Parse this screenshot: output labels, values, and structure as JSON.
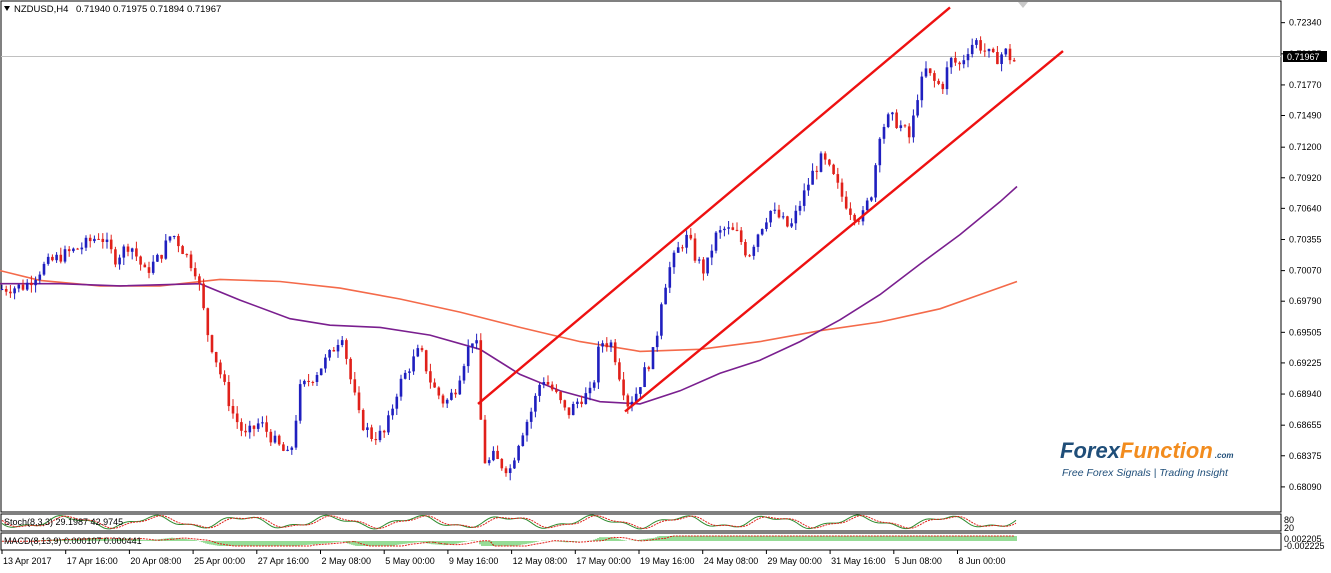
{
  "header": {
    "symbol": "NZDUSD,H4",
    "ohlc": "0.71940 0.71975 0.71894 0.71967"
  },
  "current_price": "0.71967",
  "stoch_label": "Stoch(8,3,3) 29.1987 42.9745",
  "stoch_levels": [
    "80",
    "20"
  ],
  "macd_label": "MACD(8,13,9) 0.000107 0.000441",
  "macd_levels": [
    "0.002205",
    "-0.002225"
  ],
  "watermark": {
    "brand_part1": "Forex",
    "brand_part2": "Function",
    "domain": ".com",
    "tagline": "Free Forex Signals | Trading Insight"
  },
  "colors": {
    "bull": "#1f1fbf",
    "bear": "#e0201a",
    "ma_fast": "#7a1f8f",
    "ma_slow": "#f46a4a",
    "channel": "#ee1111",
    "stoch_main": "#2e8b2e",
    "stoch_signal": "#e0201a",
    "macd_hist": "#2eb82e",
    "macd_signal": "#e0201a"
  },
  "chart_data": {
    "type": "candlestick",
    "instrument": "NZDUSD",
    "timeframe": "H4",
    "price_axis_labels": [
      "0.72340",
      "0.72055",
      "0.71770",
      "0.71490",
      "0.71200",
      "0.70920",
      "0.70640",
      "0.70355",
      "0.70070",
      "0.69790",
      "0.69505",
      "0.69225",
      "0.68940",
      "0.68655",
      "0.68375",
      "0.68090"
    ],
    "ylim": [
      0.6797,
      0.7252
    ],
    "time_axis_labels": [
      "13 Apr 2017",
      "17 Apr 16:00",
      "20 Apr 08:00",
      "25 Apr 00:00",
      "27 Apr 16:00",
      "2 May 08:00",
      "5 May 00:00",
      "9 May 16:00",
      "12 May 08:00",
      "17 May 00:00",
      "19 May 16:00",
      "24 May 08:00",
      "29 May 00:00",
      "31 May 16:00",
      "5 Jun 08:00",
      "8 Jun 00:00"
    ],
    "price_path": [
      [
        0,
        0.699
      ],
      [
        25,
        0.6993
      ],
      [
        45,
        0.7012
      ],
      [
        60,
        0.702
      ],
      [
        80,
        0.7028
      ],
      [
        100,
        0.704
      ],
      [
        115,
        0.7018
      ],
      [
        130,
        0.7032
      ],
      [
        145,
        0.7005
      ],
      [
        160,
        0.702
      ],
      [
        172,
        0.7042
      ],
      [
        185,
        0.7023
      ],
      [
        197,
        0.7005
      ],
      [
        207,
        0.6952
      ],
      [
        218,
        0.692
      ],
      [
        232,
        0.6878
      ],
      [
        245,
        0.6855
      ],
      [
        260,
        0.6868
      ],
      [
        275,
        0.685
      ],
      [
        290,
        0.6835
      ],
      [
        300,
        0.6898
      ],
      [
        315,
        0.6912
      ],
      [
        330,
        0.693
      ],
      [
        342,
        0.695
      ],
      [
        350,
        0.691
      ],
      [
        360,
        0.687
      ],
      [
        372,
        0.6855
      ],
      [
        385,
        0.6858
      ],
      [
        398,
        0.69
      ],
      [
        410,
        0.692
      ],
      [
        420,
        0.6935
      ],
      [
        432,
        0.6902
      ],
      [
        445,
        0.6885
      ],
      [
        455,
        0.6898
      ],
      [
        463,
        0.6922
      ],
      [
        472,
        0.6945
      ],
      [
        478,
        0.6935
      ],
      [
        481,
        0.6865
      ],
      [
        486,
        0.6825
      ],
      [
        492,
        0.6838
      ],
      [
        500,
        0.683
      ],
      [
        510,
        0.6825
      ],
      [
        520,
        0.6855
      ],
      [
        532,
        0.688
      ],
      [
        542,
        0.691
      ],
      [
        555,
        0.6895
      ],
      [
        567,
        0.6875
      ],
      [
        580,
        0.689
      ],
      [
        592,
        0.6895
      ],
      [
        600,
        0.6942
      ],
      [
        612,
        0.694
      ],
      [
        620,
        0.691
      ],
      [
        628,
        0.6885
      ],
      [
        636,
        0.6895
      ],
      [
        645,
        0.6915
      ],
      [
        655,
        0.6935
      ],
      [
        662,
        0.6985
      ],
      [
        670,
        0.701
      ],
      [
        680,
        0.703
      ],
      [
        688,
        0.7038
      ],
      [
        695,
        0.702
      ],
      [
        705,
        0.7005
      ],
      [
        715,
        0.7038
      ],
      [
        725,
        0.7045
      ],
      [
        738,
        0.704
      ],
      [
        748,
        0.702
      ],
      [
        758,
        0.7042
      ],
      [
        770,
        0.7062
      ],
      [
        780,
        0.7055
      ],
      [
        790,
        0.7045
      ],
      [
        800,
        0.7068
      ],
      [
        812,
        0.7095
      ],
      [
        822,
        0.711
      ],
      [
        832,
        0.7095
      ],
      [
        842,
        0.7075
      ],
      [
        852,
        0.706
      ],
      [
        862,
        0.7055
      ],
      [
        872,
        0.708
      ],
      [
        880,
        0.7135
      ],
      [
        890,
        0.7148
      ],
      [
        900,
        0.714
      ],
      [
        910,
        0.7128
      ],
      [
        918,
        0.717
      ],
      [
        926,
        0.719
      ],
      [
        934,
        0.718
      ],
      [
        942,
        0.7175
      ],
      [
        950,
        0.72
      ],
      [
        960,
        0.7195
      ],
      [
        968,
        0.721
      ],
      [
        975,
        0.7218
      ],
      [
        985,
        0.7208
      ],
      [
        995,
        0.72
      ],
      [
        1005,
        0.7208
      ],
      [
        1012,
        0.72
      ],
      [
        1017,
        0.7197
      ]
    ],
    "ma_fast_path": [
      [
        0,
        0.6995
      ],
      [
        60,
        0.6995
      ],
      [
        120,
        0.6993
      ],
      [
        200,
        0.6995
      ],
      [
        240,
        0.698
      ],
      [
        290,
        0.6963
      ],
      [
        330,
        0.6957
      ],
      [
        380,
        0.6955
      ],
      [
        430,
        0.6948
      ],
      [
        480,
        0.6935
      ],
      [
        520,
        0.6912
      ],
      [
        560,
        0.6897
      ],
      [
        600,
        0.6887
      ],
      [
        640,
        0.6885
      ],
      [
        680,
        0.6897
      ],
      [
        720,
        0.6913
      ],
      [
        760,
        0.6925
      ],
      [
        800,
        0.6942
      ],
      [
        840,
        0.6962
      ],
      [
        880,
        0.6985
      ],
      [
        920,
        0.7013
      ],
      [
        960,
        0.704
      ],
      [
        1000,
        0.707
      ],
      [
        1017,
        0.7084
      ]
    ],
    "ma_slow_path": [
      [
        0,
        0.7007
      ],
      [
        40,
        0.6998
      ],
      [
        100,
        0.6993
      ],
      [
        160,
        0.6993
      ],
      [
        220,
        0.6999
      ],
      [
        280,
        0.6997
      ],
      [
        340,
        0.6991
      ],
      [
        400,
        0.6981
      ],
      [
        460,
        0.6969
      ],
      [
        520,
        0.6955
      ],
      [
        580,
        0.6942
      ],
      [
        640,
        0.6933
      ],
      [
        700,
        0.6935
      ],
      [
        760,
        0.6942
      ],
      [
        820,
        0.6952
      ],
      [
        880,
        0.696
      ],
      [
        940,
        0.6972
      ],
      [
        980,
        0.6985
      ],
      [
        1017,
        0.6997
      ]
    ],
    "channel_lines": [
      {
        "from": [
          478,
          0.6885
        ],
        "to": [
          950,
          0.7248
        ]
      },
      {
        "from": [
          625,
          0.6878
        ],
        "to": [
          1063,
          0.7208
        ]
      }
    ]
  }
}
